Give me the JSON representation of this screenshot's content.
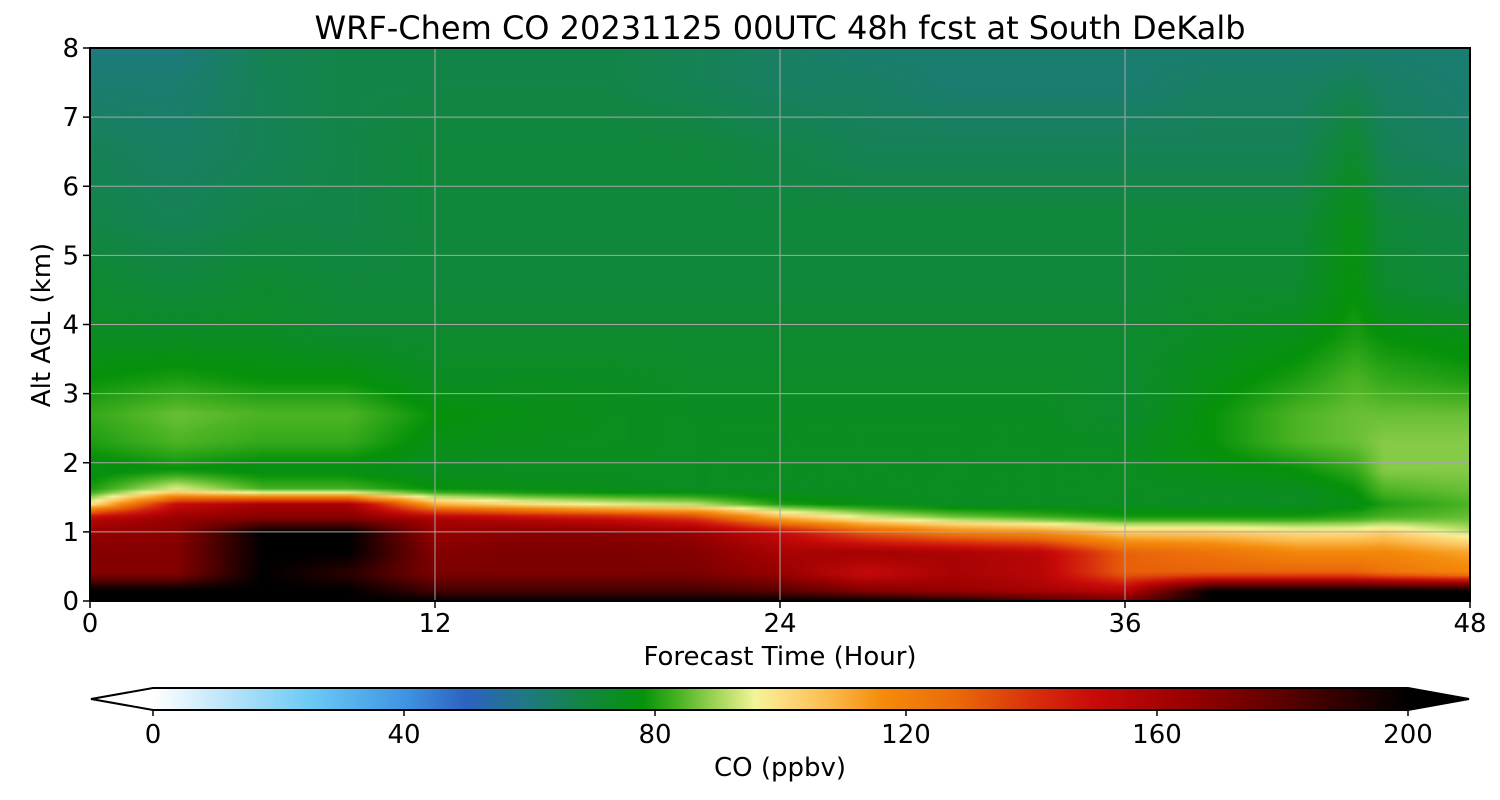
{
  "chart_data": {
    "type": "heatmap",
    "title": "WRF-Chem CO  20231125 00UTC 48h fcst at South DeKalb",
    "xlabel": "Forecast Time (Hour)",
    "ylabel": "Alt AGL (km)",
    "xlim": [
      0,
      48
    ],
    "ylim": [
      0,
      8
    ],
    "xticks": [
      0,
      12,
      24,
      36,
      48
    ],
    "yticks": [
      0,
      1,
      2,
      3,
      4,
      5,
      6,
      7,
      8
    ],
    "grid": true,
    "x": [
      0,
      3,
      6,
      9,
      12,
      15,
      18,
      21,
      24,
      27,
      30,
      33,
      36,
      39,
      42,
      44,
      45,
      48
    ],
    "y": [
      0,
      0.15,
      0.4,
      0.7,
      1.0,
      1.2,
      1.4,
      1.6,
      1.9,
      2.3,
      2.7,
      3.2,
      3.8,
      4.5,
      5.5,
      6.5,
      7.5,
      8
    ],
    "z": [
      [
        200,
        200,
        200,
        200,
        200,
        200,
        200,
        200,
        200,
        200,
        195,
        185,
        175,
        200,
        200,
        200,
        200,
        200
      ],
      [
        200,
        200,
        200,
        200,
        185,
        185,
        185,
        185,
        180,
        170,
        165,
        160,
        155,
        200,
        200,
        200,
        200,
        200
      ],
      [
        170,
        170,
        200,
        190,
        172,
        172,
        172,
        172,
        165,
        150,
        160,
        155,
        130,
        130,
        130,
        130,
        125,
        118
      ],
      [
        170,
        170,
        200,
        200,
        170,
        172,
        172,
        170,
        160,
        162,
        160,
        155,
        130,
        125,
        118,
        118,
        118,
        112
      ],
      [
        165,
        168,
        200,
        200,
        165,
        168,
        168,
        165,
        150,
        130,
        120,
        115,
        104,
        104,
        100,
        100,
        103,
        92
      ],
      [
        155,
        165,
        170,
        170,
        160,
        155,
        150,
        140,
        110,
        96,
        88,
        84,
        80,
        80,
        80,
        82,
        84,
        86
      ],
      [
        98,
        150,
        160,
        160,
        110,
        100,
        95,
        92,
        80,
        76,
        74,
        74,
        74,
        74,
        74,
        76,
        80,
        84
      ],
      [
        80,
        96,
        84,
        84,
        78,
        76,
        75,
        74,
        74,
        74,
        74,
        74,
        74,
        74,
        74,
        78,
        84,
        86
      ],
      [
        76,
        78,
        76,
        76,
        74,
        74,
        74,
        74,
        74,
        74,
        74,
        74,
        74,
        76,
        78,
        82,
        88,
        88
      ],
      [
        80,
        84,
        82,
        82,
        76,
        75,
        75,
        74,
        74,
        74,
        74,
        74,
        74,
        78,
        84,
        86,
        88,
        88
      ],
      [
        82,
        86,
        84,
        84,
        78,
        76,
        75,
        74,
        74,
        74,
        74,
        74,
        72,
        78,
        84,
        86,
        86,
        86
      ],
      [
        78,
        80,
        78,
        78,
        74,
        74,
        74,
        73,
        73,
        73,
        73,
        73,
        72,
        76,
        80,
        84,
        82,
        80
      ],
      [
        74,
        74,
        74,
        72,
        72,
        72,
        72,
        72,
        72,
        72,
        72,
        72,
        72,
        74,
        76,
        80,
        78,
        76
      ],
      [
        72,
        70,
        72,
        70,
        70,
        70,
        70,
        70,
        70,
        70,
        70,
        70,
        70,
        72,
        72,
        78,
        72,
        70
      ],
      [
        68,
        66,
        68,
        68,
        70,
        70,
        70,
        70,
        70,
        70,
        70,
        70,
        70,
        70,
        70,
        76,
        70,
        68
      ],
      [
        66,
        64,
        66,
        68,
        70,
        70,
        70,
        70,
        68,
        66,
        66,
        66,
        66,
        66,
        66,
        72,
        66,
        64
      ],
      [
        62,
        62,
        66,
        68,
        68,
        68,
        68,
        66,
        64,
        64,
        62,
        62,
        62,
        64,
        64,
        66,
        64,
        62
      ],
      [
        60,
        60,
        66,
        68,
        68,
        68,
        68,
        66,
        64,
        62,
        62,
        62,
        62,
        62,
        62,
        62,
        62,
        62
      ]
    ],
    "colorbar": {
      "label": "CO  (ppbv)",
      "ticks": [
        0,
        40,
        80,
        120,
        160,
        200
      ],
      "range": [
        0,
        200
      ],
      "extend": "both",
      "stops": [
        [
          0,
          "#ffffff"
        ],
        [
          12,
          "#b9e3fa"
        ],
        [
          25,
          "#6ccaf5"
        ],
        [
          40,
          "#3f95e3"
        ],
        [
          50,
          "#2c62c0"
        ],
        [
          60,
          "#1e7a7e"
        ],
        [
          70,
          "#10873a"
        ],
        [
          78,
          "#06920a"
        ],
        [
          84,
          "#4cb424"
        ],
        [
          90,
          "#a3d65a"
        ],
        [
          96,
          "#f3f599"
        ],
        [
          100,
          "#fdde82"
        ],
        [
          108,
          "#fbb94c"
        ],
        [
          116,
          "#f58c0a"
        ],
        [
          128,
          "#eb6a0a"
        ],
        [
          140,
          "#d8300c"
        ],
        [
          150,
          "#c80a0a"
        ],
        [
          165,
          "#980000"
        ],
        [
          180,
          "#5c0000"
        ],
        [
          192,
          "#240000"
        ],
        [
          200,
          "#000000"
        ]
      ]
    }
  }
}
